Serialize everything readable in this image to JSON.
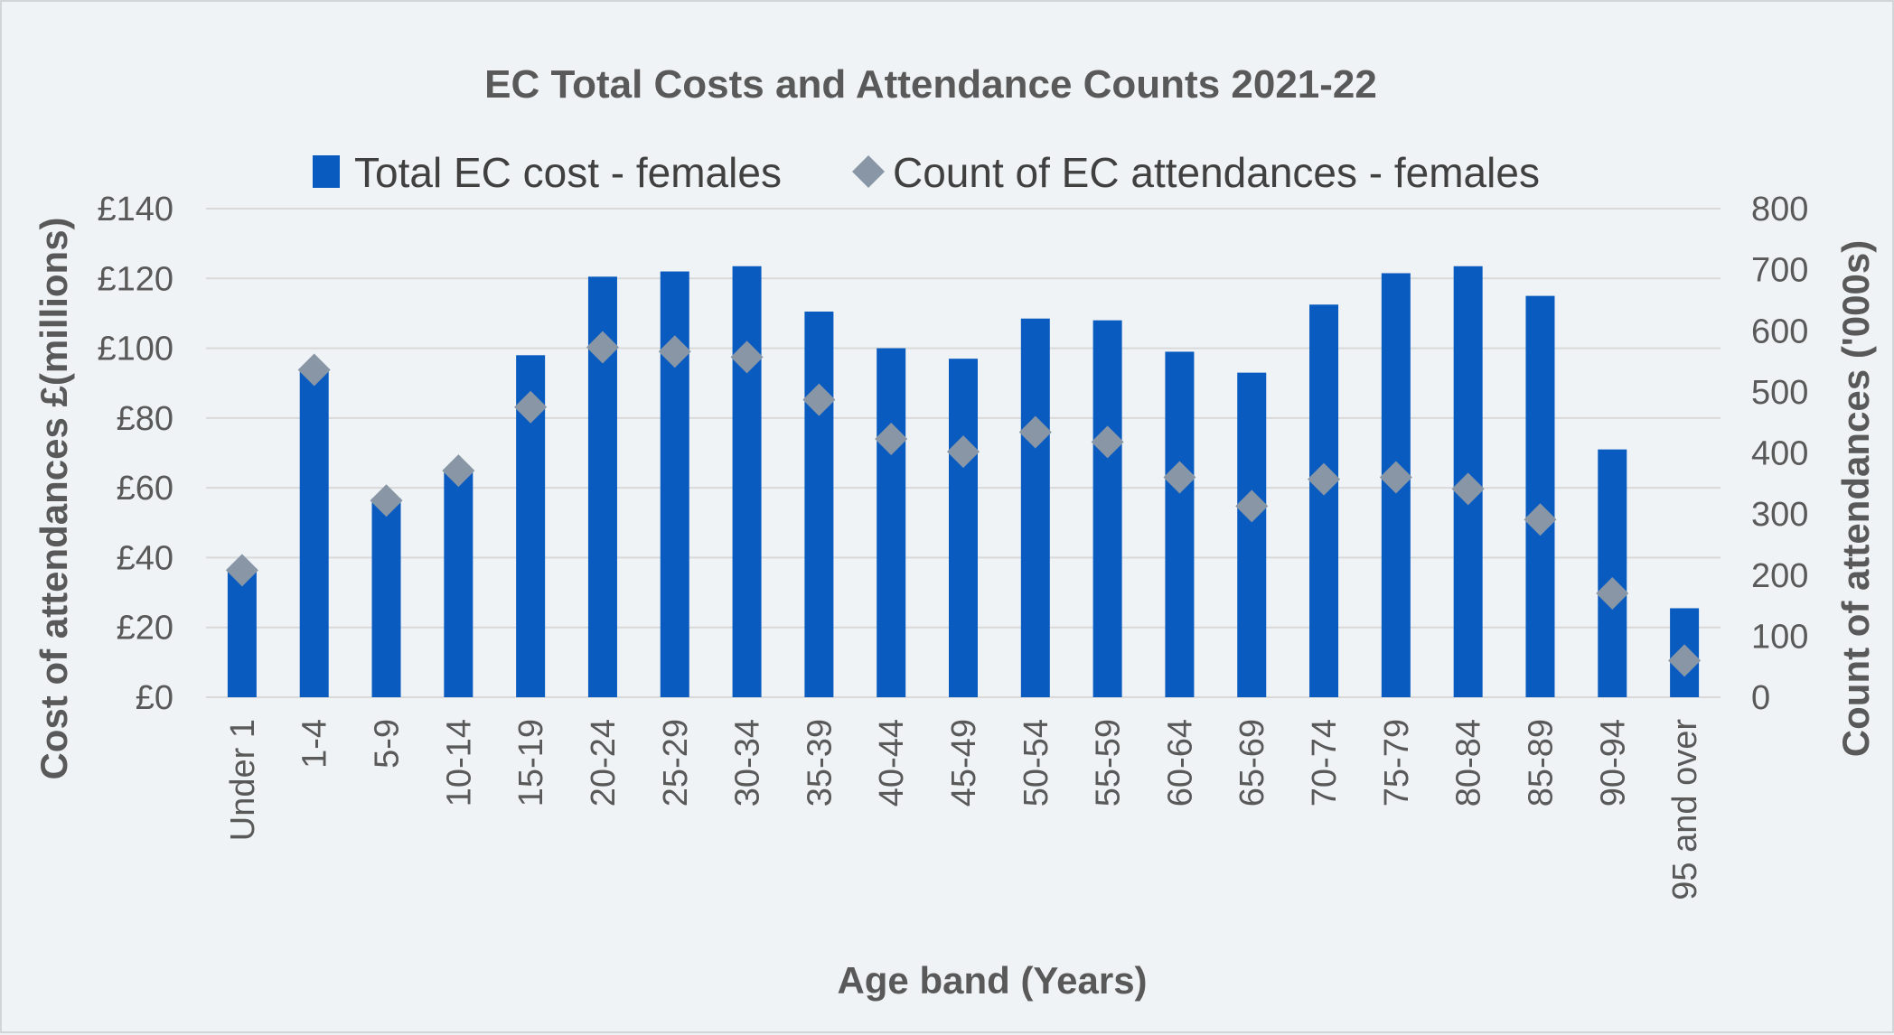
{
  "chart_data": {
    "type": "bar",
    "title": "EC Total Costs and Attendance Counts 2021-22",
    "xlabel": "Age band (Years)",
    "ylabel": "Cost of attendances £(millions)",
    "y2label": "Count of attendances ('000s)",
    "categories": [
      "Under 1",
      "1-4",
      "5-9",
      "10-14",
      "15-19",
      "20-24",
      "25-29",
      "30-34",
      "35-39",
      "40-44",
      "45-49",
      "50-54",
      "55-59",
      "60-64",
      "65-69",
      "70-74",
      "75-79",
      "80-84",
      "85-89",
      "90-94",
      "95 and over"
    ],
    "series": [
      {
        "name": "Total EC cost - females",
        "type": "bar",
        "axis": "left",
        "color": "#0a5bbf",
        "values": [
          37,
          94,
          57,
          65,
          98,
          120.5,
          122,
          123.5,
          110.5,
          100,
          97,
          108.5,
          108,
          99,
          93,
          112.5,
          121.5,
          123.5,
          115,
          71,
          25.5
        ]
      },
      {
        "name": "Count of EC attendances - females",
        "type": "scatter",
        "marker": "diamond",
        "axis": "right",
        "color": "#8896a6",
        "values": [
          208,
          536,
          322,
          371,
          475,
          573,
          566,
          557,
          487,
          423,
          402,
          434,
          418,
          360,
          313,
          357,
          360,
          341,
          291,
          170,
          60
        ]
      }
    ],
    "ylim": [
      0,
      140
    ],
    "yticks": [
      "£0",
      "£20",
      "£40",
      "£60",
      "£80",
      "£100",
      "£120",
      "£140"
    ],
    "ytick_values": [
      0,
      20,
      40,
      60,
      80,
      100,
      120,
      140
    ],
    "y2lim": [
      0,
      800
    ],
    "y2ticks": [
      "0",
      "100",
      "200",
      "300",
      "400",
      "500",
      "600",
      "700",
      "800"
    ],
    "y2tick_values": [
      0,
      100,
      200,
      300,
      400,
      500,
      600,
      700,
      800
    ],
    "grid": true,
    "legend_position": "top"
  }
}
